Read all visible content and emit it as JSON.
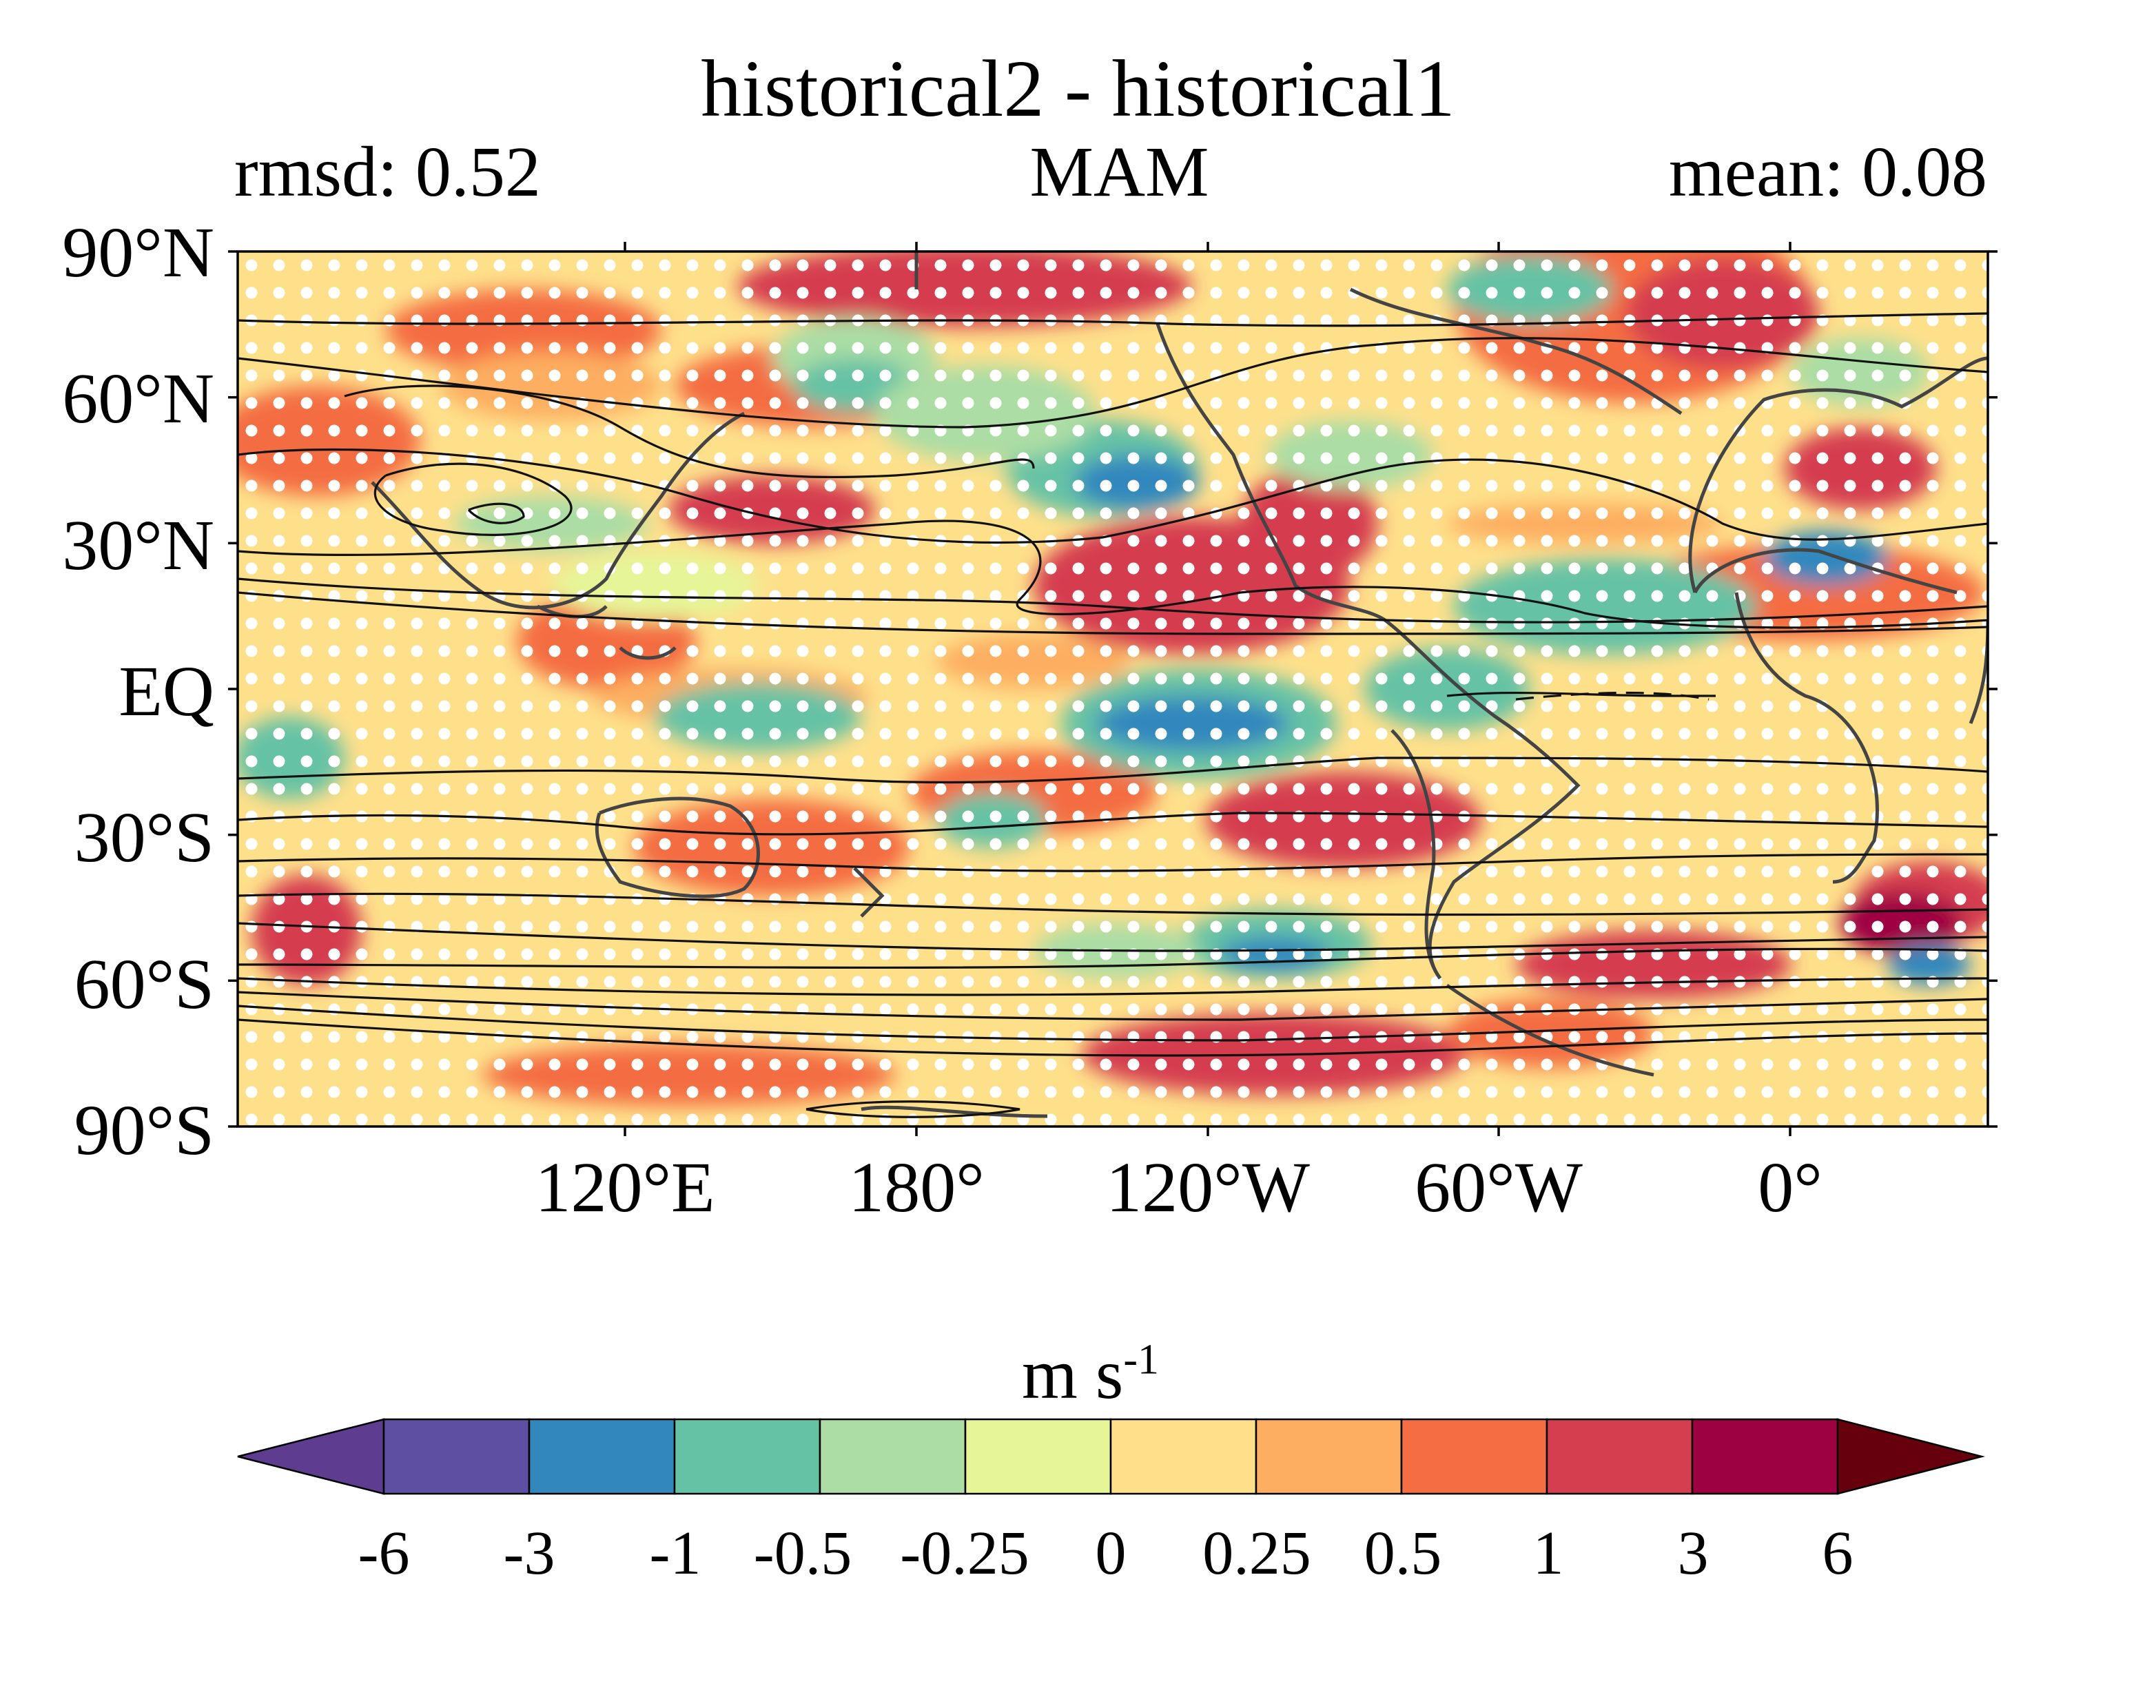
{
  "chart_data": {
    "type": "heatmap",
    "title": "historical2 - historical1",
    "left_label": "rmsd: 0.52",
    "center_label": "MAM",
    "right_label": "mean: 0.08",
    "projection": "equirectangular, 60E to 60E, 90S to 90N",
    "y_ticks": [
      "90°N",
      "60°N",
      "30°N",
      "EQ",
      "30°S",
      "60°S",
      "90°S"
    ],
    "x_ticks": [
      "120°E",
      "180°",
      "120°W",
      "60°W",
      "0°"
    ],
    "colorbar": {
      "units_main": "m s",
      "units_exp": "-1",
      "levels": [
        "-6",
        "-3",
        "-1",
        "-0.5",
        "-0.25",
        "0",
        "0.25",
        "0.5",
        "1",
        "3",
        "6"
      ],
      "colors": [
        "#5e3c8f",
        "#5e4fa2",
        "#3288bd",
        "#66c2a5",
        "#abdda4",
        "#e6f598",
        "#fee08b",
        "#fdae61",
        "#f46d43",
        "#d53e4f",
        "#9e0142",
        "#67000d"
      ],
      "extend": "both"
    },
    "overlays": [
      "black contour lines of mean field",
      "white stippling dots for significance",
      "grey coastlines"
    ],
    "grid": false
  }
}
